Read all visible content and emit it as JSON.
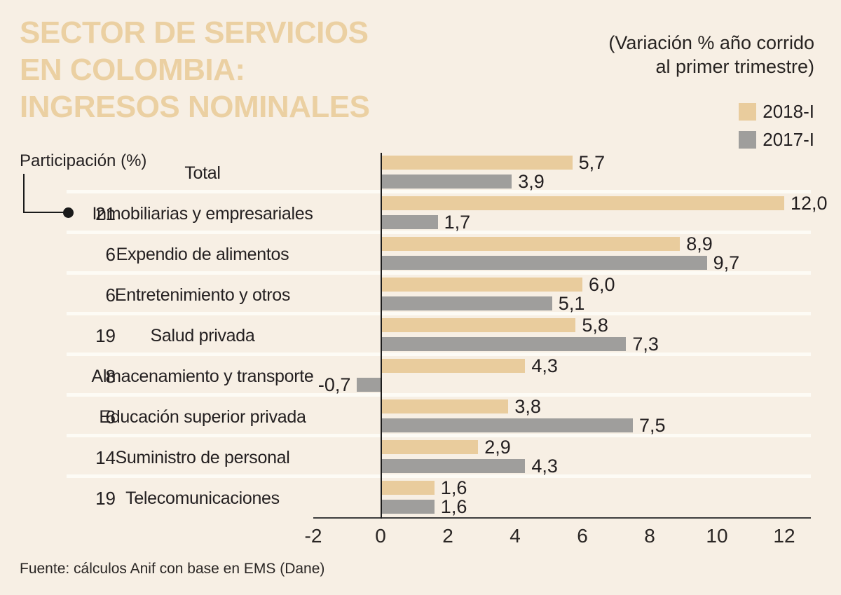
{
  "header": {
    "title_lines": [
      "SECTOR DE SERVICIOS",
      "EN COLOMBIA:",
      "INGRESOS NOMINALES"
    ],
    "subtitle_lines": [
      "(Variación % año corrido",
      "al primer trimestre)"
    ]
  },
  "footer": {
    "source": "Fuente: cálculos Anif con base en EMS (Dane)"
  },
  "chart_data": {
    "type": "bar",
    "orientation": "horizontal",
    "title": "SECTOR DE SERVICIOS EN COLOMBIA: INGRESOS NOMINALES",
    "subtitle": "(Variación % año corrido al primer trimestre)",
    "participation_header": "Participación (%)",
    "categories": [
      "Total",
      "Inmobiliarias y empresariales",
      "Expendio de alimentos",
      "Entretenimiento y otros",
      "Salud privada",
      "Almacenamiento y transporte",
      "Educación superior privada",
      "Suministro de personal",
      "Telecomunicaciones"
    ],
    "participation": [
      "",
      "21",
      "6",
      "6",
      "19",
      "8",
      "6",
      "14",
      "19"
    ],
    "series": [
      {
        "name": "2018-I",
        "color": "#e9cc9d",
        "values": [
          5.7,
          12.0,
          8.9,
          6.0,
          5.8,
          4.3,
          3.8,
          2.9,
          1.6
        ],
        "labels": [
          "5,7",
          "12,0",
          "8,9",
          "6,0",
          "5,8",
          "4,3",
          "3,8",
          "2,9",
          "1,6"
        ]
      },
      {
        "name": "2017-I",
        "color": "#9f9e9c",
        "values": [
          3.9,
          1.7,
          9.7,
          5.1,
          7.3,
          -0.7,
          7.5,
          4.3,
          1.6
        ],
        "labels": [
          "3,9",
          "1,7",
          "9,7",
          "5,1",
          "7,3",
          "-0,7",
          "7,5",
          "4,3",
          "1,6"
        ]
      }
    ],
    "xticks": [
      -2,
      0,
      2,
      4,
      6,
      8,
      10,
      12
    ],
    "xlim": [
      -2,
      13
    ],
    "grid": false,
    "legend_position": "top-right",
    "xlabel": "",
    "ylabel": ""
  }
}
